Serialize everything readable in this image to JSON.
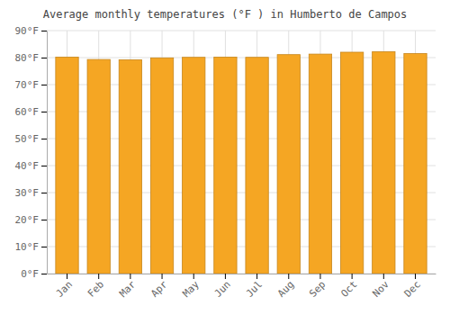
{
  "chart_data": {
    "type": "bar",
    "title": "Average monthly temperatures (°F ) in Humberto de Campos",
    "categories": [
      "Jan",
      "Feb",
      "Mar",
      "Apr",
      "May",
      "Jun",
      "Jul",
      "Aug",
      "Sep",
      "Oct",
      "Nov",
      "Dec"
    ],
    "values": [
      80.2,
      79.3,
      79.2,
      79.9,
      80.1,
      80.2,
      80.1,
      81.1,
      81.3,
      82.0,
      82.2,
      81.5
    ],
    "color": "#F5A623",
    "ylim": [
      0,
      90
    ],
    "yticks": [
      {
        "value": 0,
        "label": "0°F"
      },
      {
        "value": 10,
        "label": "10°F"
      },
      {
        "value": 20,
        "label": "20°F"
      },
      {
        "value": 30,
        "label": "30°F"
      },
      {
        "value": 40,
        "label": "40°F"
      },
      {
        "value": 50,
        "label": "50°F"
      },
      {
        "value": 60,
        "label": "60°F"
      },
      {
        "value": 70,
        "label": "70°F"
      },
      {
        "value": 80,
        "label": "80°F"
      },
      {
        "value": 90,
        "label": "90°F"
      }
    ],
    "grid": true
  }
}
